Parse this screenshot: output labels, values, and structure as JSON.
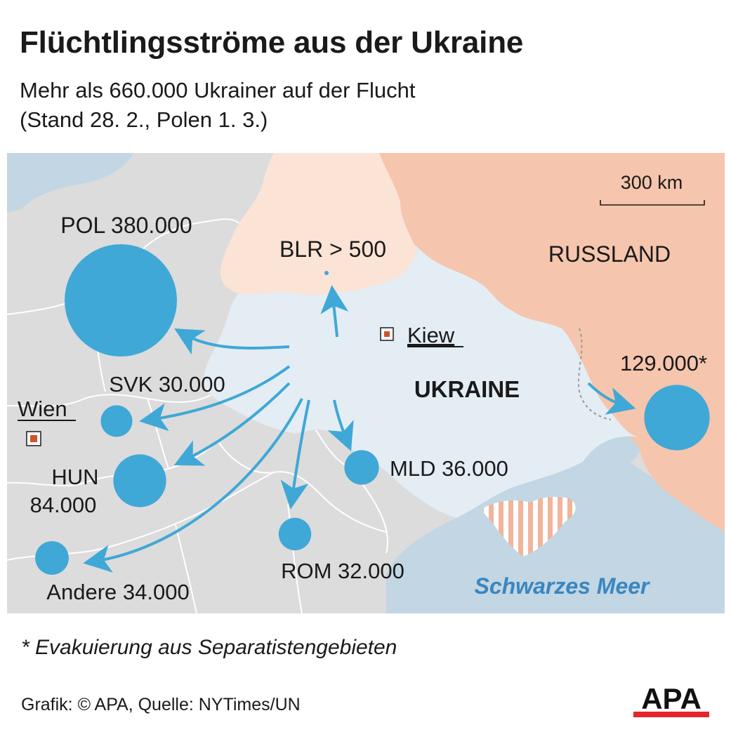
{
  "header": {
    "title": "Flüchtlingsströme aus der Ukraine",
    "subtitle_line1": "Mehr als 660.000 Ukrainer auf der Flucht",
    "subtitle_line2": "(Stand 28. 2., Polen 1. 3.)"
  },
  "map": {
    "scale_label": "300 km",
    "countries": {
      "ukraine": "UKRAINE",
      "russia": "RUSSLAND",
      "sea": "Schwarzes Meer"
    },
    "cities": {
      "kiev": "Kiew",
      "vienna": "Wien"
    },
    "flows": [
      {
        "id": "pol",
        "label": "POL 380.000",
        "value": 380000
      },
      {
        "id": "blr",
        "label": "BLR > 500",
        "value": 500
      },
      {
        "id": "svk",
        "label": "SVK 30.000",
        "value": 30000
      },
      {
        "id": "hun",
        "label_line1": "HUN",
        "label_line2": "84.000",
        "value": 84000
      },
      {
        "id": "mld",
        "label": "MLD 36.000",
        "value": 36000
      },
      {
        "id": "rom",
        "label": "ROM 32.000",
        "value": 32000
      },
      {
        "id": "other",
        "label": "Andere 34.000",
        "value": 34000
      },
      {
        "id": "rus",
        "label": "129.000*",
        "value": 129000
      }
    ],
    "colors": {
      "flow": "#3fa8d6",
      "land": "#dcdcdc",
      "ukraine": "#e4edf4",
      "russia": "#f5c5ad",
      "belarus": "#fbe3d6",
      "sea": "#c2d6e4",
      "city": "#d2532a"
    }
  },
  "footer": {
    "footnote": "* Evakuierung aus Separatistengebieten",
    "source": "Grafik: © APA, Quelle: NYTimes/UN",
    "logo_text": "APA"
  }
}
